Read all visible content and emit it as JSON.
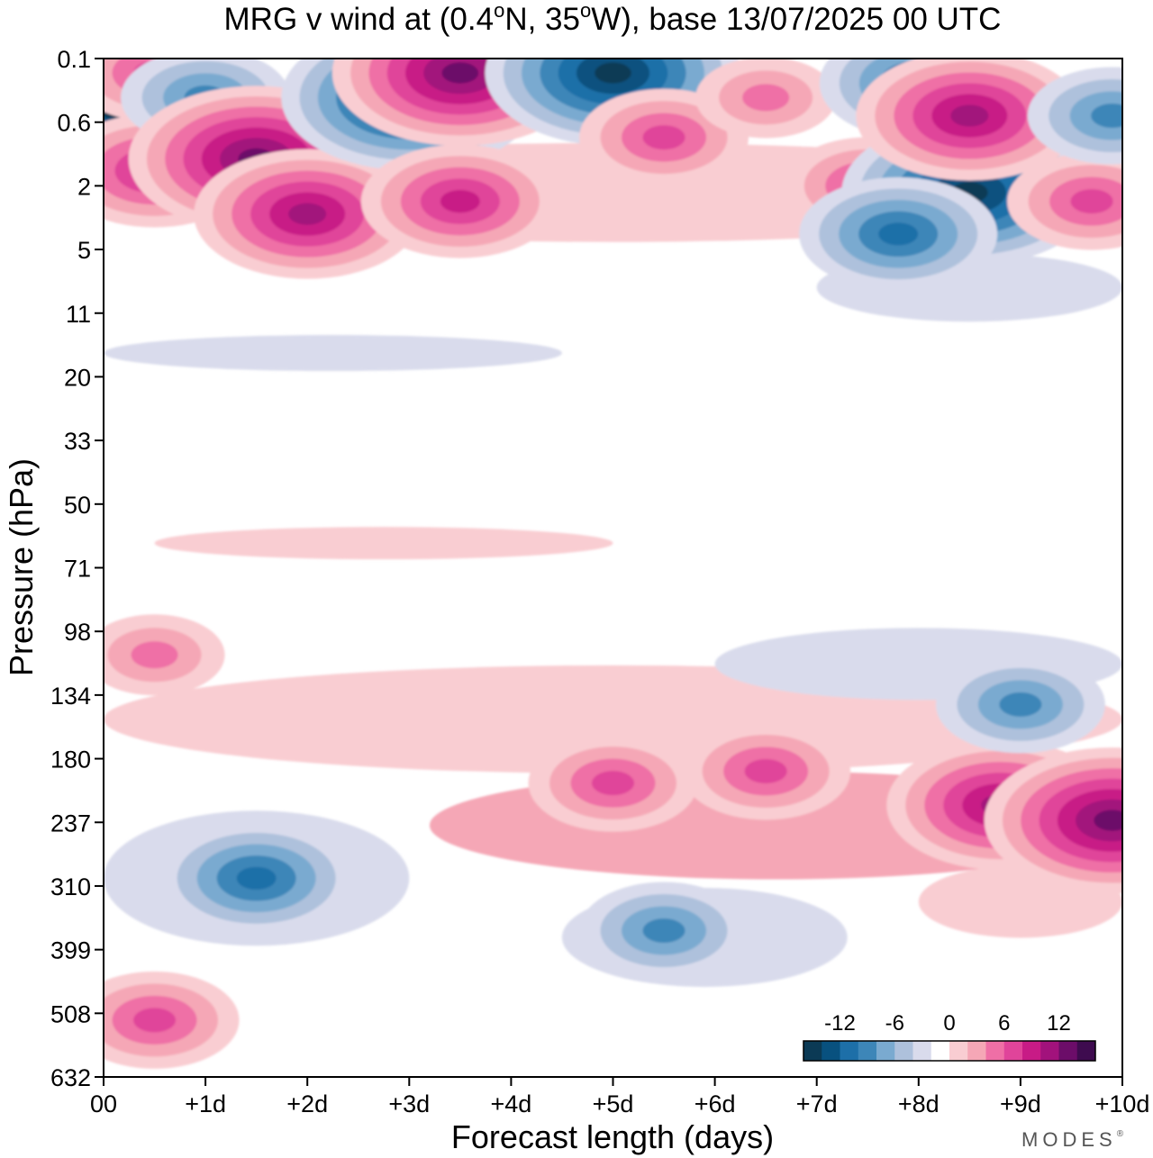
{
  "chart_data": {
    "type": "heatmap",
    "title": {
      "prefix": "MRG v wind at (0.4",
      "deg1": "o",
      "middle": "N, 35",
      "deg2": "o",
      "suffix": "W),  base 13/07/2025  00 UTC"
    },
    "xlabel": "Forecast length (days)",
    "ylabel": "Pressure (hPa)",
    "x_ticks": [
      "00",
      "+1d",
      "+2d",
      "+3d",
      "+4d",
      "+5d",
      "+6d",
      "+7d",
      "+8d",
      "+9d",
      "+10d"
    ],
    "y_ticks": [
      "0.1",
      "0.6",
      "2",
      "5",
      "11",
      "20",
      "33",
      "50",
      "71",
      "98",
      "134",
      "180",
      "237",
      "310",
      "399",
      "508",
      "632"
    ],
    "xlim": [
      0,
      10
    ],
    "ylim_hpa": [
      0.1,
      632
    ],
    "colorbar": {
      "tick_labels": [
        "-12",
        "-6",
        "0",
        "6",
        "12"
      ],
      "tick_values": [
        -12,
        -6,
        0,
        6,
        12
      ],
      "levels": [
        -16,
        -14,
        -12,
        -10,
        -8,
        -6,
        -4,
        -2,
        2,
        4,
        6,
        8,
        10,
        12,
        14,
        16
      ],
      "colors": [
        "#0b3a55",
        "#08517f",
        "#1d6fa8",
        "#3d86b8",
        "#7aaad0",
        "#aec1dc",
        "#d9dbec",
        "#ffffff",
        "#f9cdd2",
        "#f5a7b6",
        "#ef6fa6",
        "#e0449a",
        "#c81b86",
        "#a2127c",
        "#6c0d69",
        "#3e0b4f"
      ]
    },
    "features": [
      {
        "day": 0.1,
        "level": 0.4,
        "value": -13
      },
      {
        "day": 0.5,
        "level": 0.15,
        "value": 8
      },
      {
        "day": 0.5,
        "level": 1.5,
        "value": 9
      },
      {
        "day": 1.0,
        "level": 0.3,
        "value": -8
      },
      {
        "day": 1.5,
        "level": 1.2,
        "value": 16
      },
      {
        "day": 2.0,
        "level": 3,
        "value": 12
      },
      {
        "day": 3.0,
        "level": 0.3,
        "value": -16
      },
      {
        "day": 3.5,
        "level": 0.15,
        "value": 14
      },
      {
        "day": 3.5,
        "level": 2.5,
        "value": 10
      },
      {
        "day": 5.0,
        "level": 0.15,
        "value": -16
      },
      {
        "day": 5.5,
        "level": 0.8,
        "value": 8
      },
      {
        "day": 6.5,
        "level": 0.3,
        "value": 6
      },
      {
        "day": 7.5,
        "level": 2,
        "value": 8
      },
      {
        "day": 8.0,
        "level": 0.2,
        "value": -10
      },
      {
        "day": 8.5,
        "level": 2.2,
        "value": -14
      },
      {
        "day": 7.8,
        "level": 4,
        "value": -10
      },
      {
        "day": 8.5,
        "level": 0.5,
        "value": 12
      },
      {
        "day": 9.7,
        "level": 2.5,
        "value": 8
      },
      {
        "day": 9.9,
        "level": 0.5,
        "value": -8
      },
      {
        "day": 0.5,
        "level": 110,
        "value": 6
      },
      {
        "day": 1.5,
        "level": 300,
        "value": -9
      },
      {
        "day": 5.0,
        "level": 200,
        "value": 7
      },
      {
        "day": 5.5,
        "level": 370,
        "value": -8
      },
      {
        "day": 6.5,
        "level": 190,
        "value": 7
      },
      {
        "day": 8.8,
        "level": 220,
        "value": 12
      },
      {
        "day": 9.9,
        "level": 235,
        "value": 14
      },
      {
        "day": 9.0,
        "level": 140,
        "value": -8
      },
      {
        "day": 0.5,
        "level": 520,
        "value": 7
      }
    ]
  },
  "branding": {
    "watermark": "MODES",
    "mark": "®"
  }
}
